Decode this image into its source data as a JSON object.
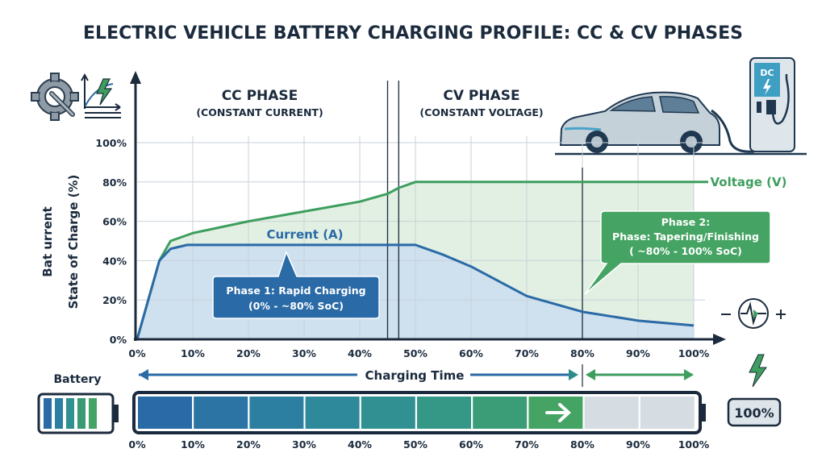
{
  "title": "ELECTRIC VEHICLE BATTERY CHARGING PROFILE: CC & CV PHASES",
  "phases": {
    "cc_title": "CC PHASE",
    "cc_subtitle": "(CONSTANT CURRENT)",
    "cv_title": "CV PHASE",
    "cv_subtitle": "(CONSTANT VOLTAGE)"
  },
  "callouts": {
    "phase1_line1": "Phase 1: Rapid Charging",
    "phase1_line2": "(0% - ~80% SoC)",
    "phase2_line1": "Phase 2:",
    "phase2_line2": "Phase: Tapering/Finishing",
    "phase2_line3": "( ~80% - 100% SoC)"
  },
  "charger_label": "DC",
  "bottom": {
    "battery_label": "Battery",
    "charging_time_label": "Charging Time",
    "full_label": "100%",
    "bar_fill_percent": 80,
    "bar_ticks": [
      "0%",
      "10%",
      "20%",
      "30%",
      "40%",
      "50%",
      "60%",
      "70%",
      "80%",
      "90%",
      "100%"
    ]
  },
  "colors": {
    "current": "#2a6aa6",
    "voltage": "#3e9e5e",
    "current_fill": "#cfe0ef",
    "voltage_fill": "#e1f0e2",
    "navy": "#1b2b3d",
    "callout_blue": "#2a6aa6",
    "callout_green": "#45a463"
  },
  "icons": [
    "gear-wrench-icon",
    "chart-bolt-icon",
    "ev-car-icon",
    "dc-charger-icon",
    "waveform-plus-minus-icon",
    "lightning-bolt-icon",
    "battery-icon",
    "arrow-right-icon"
  ],
  "chart_data": {
    "type": "line",
    "title": "ELECTRIC VEHICLE BATTERY CHARGING PROFILE: CC & CV PHASES",
    "xlabel": "Charging Time",
    "ylabel_line1": "Bat urrent",
    "ylabel_line2": "State of Charge (%)",
    "xlim": [
      0,
      100
    ],
    "ylim": [
      0,
      100
    ],
    "x_ticks": [
      "0%",
      "10%",
      "20%",
      "30%",
      "40%",
      "50%",
      "60%",
      "70%",
      "80%",
      "90%",
      "100%"
    ],
    "y_ticks": [
      "0%",
      "20%",
      "40%",
      "60%",
      "80%",
      "100%"
    ],
    "grid": true,
    "phase_boundaries": [
      45,
      47,
      80
    ],
    "series": [
      {
        "name": "Voltage (V)",
        "x": [
          0,
          4,
          6,
          10,
          20,
          30,
          40,
          45,
          47,
          50,
          100
        ],
        "y": [
          0,
          40,
          50,
          54,
          60,
          65,
          70,
          74,
          77,
          80,
          80
        ]
      },
      {
        "name": "Current (A)",
        "x": [
          0,
          4,
          6,
          9,
          50,
          55,
          60,
          70,
          80,
          90,
          100
        ],
        "y": [
          0,
          40,
          46,
          48,
          48,
          43,
          37,
          22,
          14,
          9.5,
          7
        ]
      }
    ]
  }
}
